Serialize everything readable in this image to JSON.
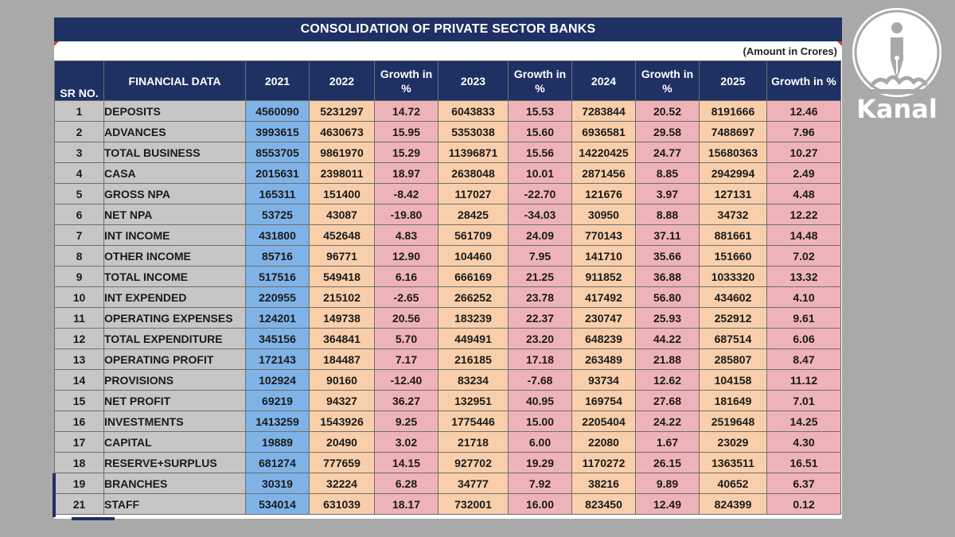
{
  "title": "CONSOLIDATION OF PRIVATE SECTOR BANKS",
  "note": "(Amount in Crores)",
  "brand": {
    "name": "Kanal",
    "icon": "pen-nib-icon"
  },
  "columns": [
    "SR NO.",
    "FINANCIAL DATA",
    "2021",
    "2022",
    "Growth in %",
    "2023",
    "Growth in %",
    "2024",
    "Growth in %",
    "2025",
    "Growth in %"
  ],
  "colors": {
    "header": "#1f3163",
    "sr_name": "#c6c6c6",
    "y2021": "#7fb3e8",
    "values": "#f8cfaa",
    "growth": "#eeb3b8",
    "background": "#a9a9a9"
  },
  "rows": [
    [
      "1",
      "DEPOSITS",
      "4560090",
      "5231297",
      "14.72",
      "6043833",
      "15.53",
      "7283844",
      "20.52",
      "8191666",
      "12.46"
    ],
    [
      "2",
      "ADVANCES",
      "3993615",
      "4630673",
      "15.95",
      "5353038",
      "15.60",
      "6936581",
      "29.58",
      "7488697",
      "7.96"
    ],
    [
      "3",
      "TOTAL BUSINESS",
      "8553705",
      "9861970",
      "15.29",
      "11396871",
      "15.56",
      "14220425",
      "24.77",
      "15680363",
      "10.27"
    ],
    [
      "4",
      "CASA",
      "2015631",
      "2398011",
      "18.97",
      "2638048",
      "10.01",
      "2871456",
      "8.85",
      "2942994",
      "2.49"
    ],
    [
      "5",
      "GROSS NPA",
      "165311",
      "151400",
      "-8.42",
      "117027",
      "-22.70",
      "121676",
      "3.97",
      "127131",
      "4.48"
    ],
    [
      "6",
      "NET NPA",
      "53725",
      "43087",
      "-19.80",
      "28425",
      "-34.03",
      "30950",
      "8.88",
      "34732",
      "12.22"
    ],
    [
      "7",
      "INT INCOME",
      "431800",
      "452648",
      "4.83",
      "561709",
      "24.09",
      "770143",
      "37.11",
      "881661",
      "14.48"
    ],
    [
      "8",
      "OTHER INCOME",
      "85716",
      "96771",
      "12.90",
      "104460",
      "7.95",
      "141710",
      "35.66",
      "151660",
      "7.02"
    ],
    [
      "9",
      "TOTAL INCOME",
      "517516",
      "549418",
      "6.16",
      "666169",
      "21.25",
      "911852",
      "36.88",
      "1033320",
      "13.32"
    ],
    [
      "10",
      "INT EXPENDED",
      "220955",
      "215102",
      "-2.65",
      "266252",
      "23.78",
      "417492",
      "56.80",
      "434602",
      "4.10"
    ],
    [
      "11",
      "OPERATING EXPENSES",
      "124201",
      "149738",
      "20.56",
      "183239",
      "22.37",
      "230747",
      "25.93",
      "252912",
      "9.61"
    ],
    [
      "12",
      "TOTAL EXPENDITURE",
      "345156",
      "364841",
      "5.70",
      "449491",
      "23.20",
      "648239",
      "44.22",
      "687514",
      "6.06"
    ],
    [
      "13",
      "OPERATING PROFIT",
      "172143",
      "184487",
      "7.17",
      "216185",
      "17.18",
      "263489",
      "21.88",
      "285807",
      "8.47"
    ],
    [
      "14",
      "PROVISIONS",
      "102924",
      "90160",
      "-12.40",
      "83234",
      "-7.68",
      "93734",
      "12.62",
      "104158",
      "11.12"
    ],
    [
      "15",
      "NET PROFIT",
      "69219",
      "94327",
      "36.27",
      "132951",
      "40.95",
      "169754",
      "27.68",
      "181649",
      "7.01"
    ],
    [
      "16",
      "INVESTMENTS",
      "1413259",
      "1543926",
      "9.25",
      "1775446",
      "15.00",
      "2205404",
      "24.22",
      "2519648",
      "14.25"
    ],
    [
      "17",
      "CAPITAL",
      "19889",
      "20490",
      "3.02",
      "21718",
      "6.00",
      "22080",
      "1.67",
      "23029",
      "4.30"
    ],
    [
      "18",
      "RESERVE+SURPLUS",
      "681274",
      "777659",
      "14.15",
      "927702",
      "19.29",
      "1170272",
      "26.15",
      "1363511",
      "16.51"
    ],
    [
      "19",
      "BRANCHES",
      "30319",
      "32224",
      "6.28",
      "34777",
      "7.92",
      "38216",
      "9.89",
      "40652",
      "6.37"
    ],
    [
      "21",
      "STAFF",
      "534014",
      "631039",
      "18.17",
      "732001",
      "16.00",
      "823450",
      "12.49",
      "824399",
      "0.12"
    ]
  ]
}
